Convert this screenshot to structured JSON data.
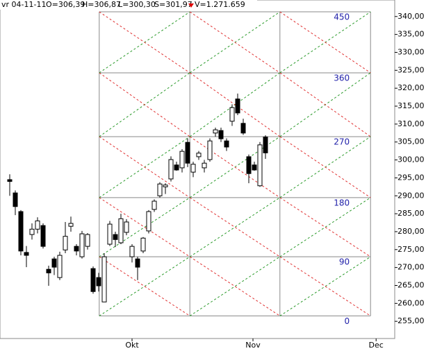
{
  "header": {
    "date": "vr 04-11-11",
    "open": "O=306,39",
    "high": "H=306,87",
    "low": "L=300,30",
    "close": "S=301,97",
    "volume": "V=1.271.659"
  },
  "chart_data": {
    "type": "candlestick",
    "candles": [
      [
        294.5,
        296,
        290,
        294
      ],
      [
        290.8,
        291.5,
        284.6,
        287
      ],
      [
        285.6,
        286,
        273.4,
        274.6
      ],
      [
        274.2,
        276,
        270.1,
        273.4
      ],
      [
        279.2,
        282.3,
        277.8,
        280.7
      ],
      [
        280.7,
        284,
        279.5,
        283
      ],
      [
        281.7,
        282.3,
        275.3,
        275.9
      ],
      [
        269.5,
        270.5,
        264.9,
        268.5
      ],
      [
        272.4,
        273,
        267.9,
        270.1
      ],
      [
        267.2,
        274.4,
        266.5,
        273.4
      ],
      [
        274.9,
        282.7,
        274,
        278.7
      ],
      [
        281.5,
        284.2,
        280,
        282.3
      ],
      [
        275.9,
        276.5,
        273.4,
        274.6
      ],
      [
        273,
        280.2,
        272.5,
        279.4
      ],
      [
        275.9,
        279.6,
        275,
        279.2
      ],
      [
        269.7,
        270.3,
        262.7,
        263.3
      ],
      [
        267.2,
        268.5,
        263.3,
        264.9
      ],
      [
        260.4,
        274,
        260.4,
        273
      ],
      [
        276.5,
        283,
        276,
        282.1
      ],
      [
        279.2,
        280,
        275.7,
        277.8
      ],
      [
        276.9,
        285,
        276.5,
        283.6
      ],
      [
        279.8,
        283.5,
        279,
        282.7
      ],
      [
        273,
        276.5,
        271.4,
        275.9
      ],
      [
        272.4,
        273,
        266.5,
        270.1
      ],
      [
        274.6,
        278.5,
        274,
        278.2
      ],
      [
        280.2,
        286,
        279.5,
        285.6
      ],
      [
        286.2,
        289,
        285.5,
        288.5
      ],
      [
        290,
        293.8,
        289.5,
        293.3
      ],
      [
        292.5,
        293.5,
        290.5,
        293
      ],
      [
        294.7,
        301,
        294,
        300.1
      ],
      [
        298.6,
        299.5,
        297,
        297.2
      ],
      [
        297.8,
        303,
        296.5,
        302.4
      ],
      [
        304.9,
        306,
        298,
        299.1
      ],
      [
        296.6,
        299.5,
        295.2,
        298.8
      ],
      [
        300.9,
        302.5,
        300,
        301.9
      ],
      [
        297.8,
        300,
        296.5,
        299.1
      ],
      [
        300.1,
        306,
        299.5,
        305.3
      ],
      [
        307.5,
        309,
        306.5,
        308.4
      ],
      [
        308.2,
        309,
        305,
        305.9
      ],
      [
        305.3,
        306,
        302.5,
        303.6
      ],
      [
        310.8,
        315.5,
        309.5,
        314.6
      ],
      [
        317,
        318.5,
        312.5,
        313.1
      ],
      [
        310.2,
        311.5,
        307,
        307.5
      ],
      [
        300.9,
        301.5,
        293.5,
        296.2
      ],
      [
        298.6,
        299.5,
        297,
        297.2
      ],
      [
        292.8,
        305,
        292.5,
        304.2
      ],
      [
        306.39,
        306.87,
        300.3,
        301.97
      ]
    ],
    "xlim": [
      -1.75,
      69.25
    ],
    "xticks": [
      {
        "value": 22,
        "label": "Okt"
      },
      {
        "value": 43.75,
        "label": "Nov"
      },
      {
        "value": 65.9,
        "label": "Dec"
      }
    ],
    "ylim": [
      250.2,
      344.6
    ],
    "yticks": [
      {
        "value": 255,
        "label": "255,00"
      },
      {
        "value": 260,
        "label": "260,00"
      },
      {
        "value": 265,
        "label": "265,00"
      },
      {
        "value": 270,
        "label": "270,00"
      },
      {
        "value": 275,
        "label": "275,00"
      },
      {
        "value": 280,
        "label": "280,00"
      },
      {
        "value": 285,
        "label": "285,00"
      },
      {
        "value": 290,
        "label": "290,00"
      },
      {
        "value": 295,
        "label": "295,00"
      },
      {
        "value": 300,
        "label": "300,00"
      },
      {
        "value": 305,
        "label": "305,00"
      },
      {
        "value": 310,
        "label": "310,00"
      },
      {
        "value": 315,
        "label": "315,00"
      },
      {
        "value": 320,
        "label": "320,00"
      },
      {
        "value": 325,
        "label": "325,00"
      },
      {
        "value": 330,
        "label": "330,00"
      },
      {
        "value": 335,
        "label": "335,00"
      },
      {
        "value": 340,
        "label": "340,00"
      }
    ],
    "gann": {
      "levels": [
        0,
        90,
        180,
        270,
        360,
        450
      ],
      "prices": [
        256.5,
        273,
        289.5,
        306.5,
        324.3,
        341.3
      ],
      "x": [
        16.1,
        32.4,
        48.6,
        64.9
      ],
      "up_color": "#2a9a2a",
      "down_color": "#e03030",
      "line_color": "#888888"
    }
  }
}
